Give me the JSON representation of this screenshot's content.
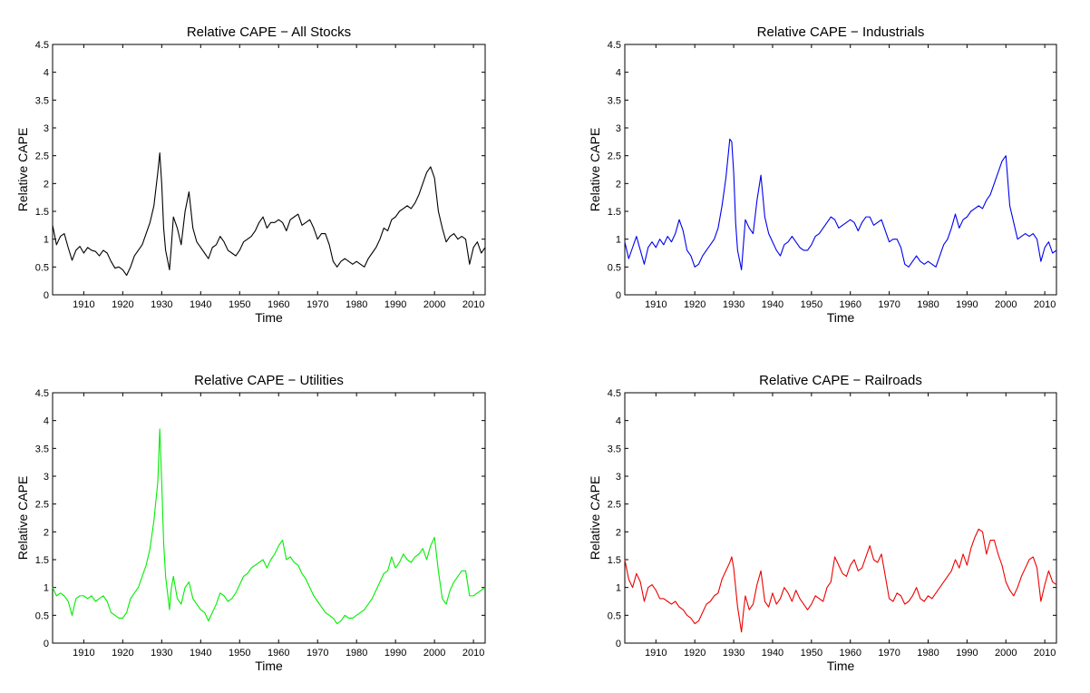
{
  "chart_data": [
    {
      "type": "line",
      "title": "Relative CAPE − All Stocks",
      "xlabel": "Time",
      "ylabel": "Relative CAPE",
      "xlim": [
        1902,
        2013
      ],
      "ylim": [
        0,
        4.5
      ],
      "xticks": [
        1910,
        1920,
        1930,
        1940,
        1950,
        1960,
        1970,
        1980,
        1990,
        2000,
        2010
      ],
      "yticks": [
        "0",
        "0.5",
        "1",
        "1.5",
        "2",
        "2.5",
        "3",
        "3.5",
        "4",
        "4.5"
      ],
      "grid": false,
      "color": "#000000",
      "series": [
        {
          "x": [
            1902,
            1903,
            1904,
            1905,
            1906,
            1907,
            1908,
            1909,
            1910,
            1911,
            1912,
            1913,
            1914,
            1915,
            1916,
            1917,
            1918,
            1919,
            1920,
            1921,
            1922,
            1923,
            1924,
            1925,
            1926,
            1927,
            1928,
            1929,
            1929.5,
            1930,
            1930.5,
            1931,
            1932,
            1932.5,
            1933,
            1934,
            1935,
            1936,
            1937,
            1938,
            1939,
            1940,
            1941,
            1942,
            1943,
            1944,
            1945,
            1946,
            1947,
            1948,
            1949,
            1950,
            1951,
            1952,
            1953,
            1954,
            1955,
            1956,
            1957,
            1958,
            1959,
            1960,
            1961,
            1962,
            1963,
            1964,
            1965,
            1966,
            1967,
            1968,
            1969,
            1970,
            1971,
            1972,
            1973,
            1974,
            1975,
            1976,
            1977,
            1978,
            1979,
            1980,
            1981,
            1982,
            1983,
            1984,
            1985,
            1986,
            1987,
            1988,
            1989,
            1990,
            1991,
            1992,
            1993,
            1994,
            1995,
            1996,
            1997,
            1998,
            1999,
            2000,
            2001,
            2002,
            2003,
            2004,
            2005,
            2006,
            2007,
            2008,
            2009,
            2010,
            2011,
            2012,
            2013
          ],
          "y": [
            1.25,
            0.9,
            1.05,
            1.1,
            0.85,
            0.62,
            0.8,
            0.87,
            0.75,
            0.85,
            0.8,
            0.78,
            0.7,
            0.8,
            0.75,
            0.6,
            0.48,
            0.5,
            0.45,
            0.35,
            0.5,
            0.7,
            0.8,
            0.9,
            1.1,
            1.3,
            1.6,
            2.2,
            2.55,
            2.0,
            1.2,
            0.8,
            0.45,
            0.9,
            1.4,
            1.2,
            0.9,
            1.5,
            1.85,
            1.2,
            0.95,
            0.85,
            0.75,
            0.65,
            0.85,
            0.9,
            1.05,
            0.95,
            0.8,
            0.75,
            0.7,
            0.8,
            0.95,
            1.0,
            1.05,
            1.15,
            1.3,
            1.4,
            1.2,
            1.3,
            1.3,
            1.35,
            1.3,
            1.15,
            1.35,
            1.4,
            1.45,
            1.25,
            1.3,
            1.35,
            1.2,
            1.0,
            1.1,
            1.1,
            0.9,
            0.6,
            0.5,
            0.6,
            0.65,
            0.6,
            0.55,
            0.6,
            0.55,
            0.5,
            0.65,
            0.75,
            0.85,
            1.0,
            1.2,
            1.15,
            1.35,
            1.4,
            1.5,
            1.55,
            1.6,
            1.55,
            1.65,
            1.8,
            2.0,
            2.2,
            2.3,
            2.1,
            1.5,
            1.2,
            0.95,
            1.05,
            1.1,
            1.0,
            1.05,
            1.0,
            0.55,
            0.85,
            0.95,
            0.75,
            0.85
          ]
        }
      ]
    },
    {
      "type": "line",
      "title": "Relative CAPE − Industrials",
      "xlabel": "Time",
      "ylabel": "Relative CAPE",
      "xlim": [
        1902,
        2013
      ],
      "ylim": [
        0,
        4.5
      ],
      "xticks": [
        1910,
        1920,
        1930,
        1940,
        1950,
        1960,
        1970,
        1980,
        1990,
        2000,
        2010
      ],
      "yticks": [
        "0",
        "0.5",
        "1",
        "1.5",
        "2",
        "2.5",
        "3",
        "3.5",
        "4",
        "4.5"
      ],
      "grid": false,
      "color": "#0000ee",
      "series": [
        {
          "x": [
            1902,
            1903,
            1904,
            1905,
            1906,
            1907,
            1908,
            1909,
            1910,
            1911,
            1912,
            1913,
            1914,
            1915,
            1916,
            1917,
            1918,
            1919,
            1920,
            1921,
            1922,
            1923,
            1924,
            1925,
            1926,
            1927,
            1928,
            1929,
            1929.5,
            1930,
            1930.5,
            1931,
            1932,
            1932.5,
            1933,
            1934,
            1935,
            1936,
            1937,
            1938,
            1939,
            1940,
            1941,
            1942,
            1943,
            1944,
            1945,
            1946,
            1947,
            1948,
            1949,
            1950,
            1951,
            1952,
            1953,
            1954,
            1955,
            1956,
            1957,
            1958,
            1959,
            1960,
            1961,
            1962,
            1963,
            1964,
            1965,
            1966,
            1967,
            1968,
            1969,
            1970,
            1971,
            1972,
            1973,
            1974,
            1975,
            1976,
            1977,
            1978,
            1979,
            1980,
            1981,
            1982,
            1983,
            1984,
            1985,
            1986,
            1987,
            1988,
            1989,
            1990,
            1991,
            1992,
            1993,
            1994,
            1995,
            1996,
            1997,
            1998,
            1999,
            2000,
            2001,
            2002,
            2003,
            2004,
            2005,
            2006,
            2007,
            2008,
            2009,
            2010,
            2011,
            2012,
            2013
          ],
          "y": [
            0.95,
            0.65,
            0.85,
            1.05,
            0.8,
            0.55,
            0.85,
            0.95,
            0.85,
            1.0,
            0.9,
            1.05,
            0.95,
            1.1,
            1.35,
            1.15,
            0.8,
            0.7,
            0.5,
            0.55,
            0.7,
            0.8,
            0.9,
            1.0,
            1.2,
            1.6,
            2.1,
            2.8,
            2.75,
            2.2,
            1.3,
            0.8,
            0.45,
            0.9,
            1.35,
            1.2,
            1.1,
            1.7,
            2.15,
            1.4,
            1.1,
            0.95,
            0.8,
            0.7,
            0.9,
            0.95,
            1.05,
            0.95,
            0.85,
            0.8,
            0.8,
            0.9,
            1.05,
            1.1,
            1.2,
            1.3,
            1.4,
            1.35,
            1.2,
            1.25,
            1.3,
            1.35,
            1.3,
            1.15,
            1.3,
            1.4,
            1.4,
            1.25,
            1.3,
            1.35,
            1.15,
            0.95,
            1.0,
            1.0,
            0.85,
            0.55,
            0.5,
            0.6,
            0.7,
            0.6,
            0.55,
            0.6,
            0.55,
            0.5,
            0.7,
            0.9,
            1.0,
            1.2,
            1.45,
            1.2,
            1.35,
            1.4,
            1.5,
            1.55,
            1.6,
            1.55,
            1.7,
            1.8,
            2.0,
            2.2,
            2.4,
            2.5,
            1.6,
            1.3,
            1.0,
            1.05,
            1.1,
            1.05,
            1.1,
            1.0,
            0.6,
            0.85,
            0.95,
            0.75,
            0.8
          ]
        }
      ]
    },
    {
      "type": "line",
      "title": "Relative CAPE − Utilities",
      "xlabel": "Time",
      "ylabel": "Relative CAPE",
      "xlim": [
        1902,
        2013
      ],
      "ylim": [
        0,
        4.5
      ],
      "xticks": [
        1910,
        1920,
        1930,
        1940,
        1950,
        1960,
        1970,
        1980,
        1990,
        2000,
        2010
      ],
      "yticks": [
        "0",
        "0.5",
        "1",
        "1.5",
        "2",
        "2.5",
        "3",
        "3.5",
        "4",
        "4.5"
      ],
      "grid": false,
      "color": "#00ee00",
      "series": [
        {
          "x": [
            1902,
            1903,
            1904,
            1905,
            1906,
            1907,
            1908,
            1909,
            1910,
            1911,
            1912,
            1913,
            1914,
            1915,
            1916,
            1917,
            1918,
            1919,
            1920,
            1921,
            1922,
            1923,
            1924,
            1925,
            1926,
            1927,
            1928,
            1929,
            1929.5,
            1930,
            1930.5,
            1931,
            1932,
            1932.5,
            1933,
            1934,
            1935,
            1936,
            1937,
            1938,
            1939,
            1940,
            1941,
            1942,
            1943,
            1944,
            1945,
            1946,
            1947,
            1948,
            1949,
            1950,
            1951,
            1952,
            1953,
            1954,
            1955,
            1956,
            1957,
            1958,
            1959,
            1960,
            1961,
            1962,
            1963,
            1964,
            1965,
            1966,
            1967,
            1968,
            1969,
            1970,
            1971,
            1972,
            1973,
            1974,
            1975,
            1976,
            1977,
            1978,
            1979,
            1980,
            1981,
            1982,
            1983,
            1984,
            1985,
            1986,
            1987,
            1988,
            1989,
            1990,
            1991,
            1992,
            1993,
            1994,
            1995,
            1996,
            1997,
            1998,
            1999,
            2000,
            2001,
            2002,
            2003,
            2004,
            2005,
            2006,
            2007,
            2008,
            2009,
            2010,
            2011,
            2012,
            2013
          ],
          "y": [
            1.0,
            0.85,
            0.9,
            0.85,
            0.75,
            0.5,
            0.8,
            0.85,
            0.85,
            0.8,
            0.85,
            0.75,
            0.8,
            0.85,
            0.75,
            0.55,
            0.5,
            0.45,
            0.45,
            0.55,
            0.8,
            0.9,
            1.0,
            1.2,
            1.4,
            1.7,
            2.2,
            2.9,
            3.85,
            2.9,
            1.8,
            1.2,
            0.6,
            1.0,
            1.2,
            0.8,
            0.7,
            1.0,
            1.1,
            0.8,
            0.7,
            0.6,
            0.55,
            0.4,
            0.55,
            0.7,
            0.9,
            0.85,
            0.75,
            0.8,
            0.9,
            1.05,
            1.2,
            1.25,
            1.35,
            1.4,
            1.45,
            1.5,
            1.35,
            1.5,
            1.6,
            1.75,
            1.85,
            1.5,
            1.55,
            1.45,
            1.4,
            1.25,
            1.15,
            1.0,
            0.85,
            0.75,
            0.65,
            0.55,
            0.5,
            0.45,
            0.35,
            0.4,
            0.5,
            0.45,
            0.45,
            0.5,
            0.55,
            0.6,
            0.7,
            0.8,
            0.95,
            1.1,
            1.25,
            1.3,
            1.55,
            1.35,
            1.45,
            1.6,
            1.5,
            1.45,
            1.55,
            1.6,
            1.7,
            1.5,
            1.75,
            1.9,
            1.3,
            0.8,
            0.7,
            0.95,
            1.1,
            1.2,
            1.3,
            1.3,
            0.85,
            0.85,
            0.9,
            0.95,
            1.0
          ]
        }
      ]
    },
    {
      "type": "line",
      "title": "Relative CAPE − Railroads",
      "xlabel": "Time",
      "ylabel": "Relative CAPE",
      "xlim": [
        1902,
        2013
      ],
      "ylim": [
        0,
        4.5
      ],
      "xticks": [
        1910,
        1920,
        1930,
        1940,
        1950,
        1960,
        1970,
        1980,
        1990,
        2000,
        2010
      ],
      "yticks": [
        "0",
        "0.5",
        "1",
        "1.5",
        "2",
        "2.5",
        "3",
        "3.5",
        "4",
        "4.5"
      ],
      "grid": false,
      "color": "#ee0000",
      "series": [
        {
          "x": [
            1902,
            1903,
            1904,
            1905,
            1906,
            1907,
            1908,
            1909,
            1910,
            1911,
            1912,
            1913,
            1914,
            1915,
            1916,
            1917,
            1918,
            1919,
            1920,
            1921,
            1922,
            1923,
            1924,
            1925,
            1926,
            1927,
            1928,
            1929,
            1929.5,
            1930,
            1930.5,
            1931,
            1932,
            1932.5,
            1933,
            1934,
            1935,
            1936,
            1937,
            1938,
            1939,
            1940,
            1941,
            1942,
            1943,
            1944,
            1945,
            1946,
            1947,
            1948,
            1949,
            1950,
            1951,
            1952,
            1953,
            1954,
            1955,
            1956,
            1957,
            1958,
            1959,
            1960,
            1961,
            1962,
            1963,
            1964,
            1965,
            1966,
            1967,
            1968,
            1969,
            1970,
            1971,
            1972,
            1973,
            1974,
            1975,
            1976,
            1977,
            1978,
            1979,
            1980,
            1981,
            1982,
            1983,
            1984,
            1985,
            1986,
            1987,
            1988,
            1989,
            1990,
            1991,
            1992,
            1993,
            1994,
            1995,
            1996,
            1997,
            1998,
            1999,
            2000,
            2001,
            2002,
            2003,
            2004,
            2005,
            2006,
            2007,
            2008,
            2009,
            2010,
            2011,
            2012,
            2013
          ],
          "y": [
            1.5,
            1.15,
            1.0,
            1.25,
            1.1,
            0.75,
            1.0,
            1.05,
            0.95,
            0.8,
            0.8,
            0.75,
            0.7,
            0.75,
            0.65,
            0.6,
            0.5,
            0.45,
            0.35,
            0.4,
            0.55,
            0.7,
            0.75,
            0.85,
            0.9,
            1.15,
            1.3,
            1.45,
            1.55,
            1.35,
            1.0,
            0.65,
            0.2,
            0.55,
            0.85,
            0.6,
            0.7,
            1.05,
            1.3,
            0.75,
            0.65,
            0.9,
            0.7,
            0.8,
            1.0,
            0.9,
            0.75,
            0.95,
            0.8,
            0.7,
            0.6,
            0.7,
            0.85,
            0.8,
            0.75,
            1.0,
            1.1,
            1.55,
            1.4,
            1.25,
            1.2,
            1.4,
            1.5,
            1.3,
            1.35,
            1.55,
            1.75,
            1.5,
            1.45,
            1.6,
            1.2,
            0.8,
            0.75,
            0.9,
            0.85,
            0.7,
            0.75,
            0.85,
            1.0,
            0.8,
            0.75,
            0.85,
            0.8,
            0.9,
            1.0,
            1.1,
            1.2,
            1.3,
            1.5,
            1.35,
            1.6,
            1.4,
            1.7,
            1.9,
            2.05,
            2.0,
            1.6,
            1.85,
            1.85,
            1.6,
            1.4,
            1.1,
            0.95,
            0.85,
            1.0,
            1.2,
            1.35,
            1.5,
            1.55,
            1.35,
            0.75,
            1.05,
            1.3,
            1.1,
            1.05
          ]
        }
      ]
    }
  ]
}
